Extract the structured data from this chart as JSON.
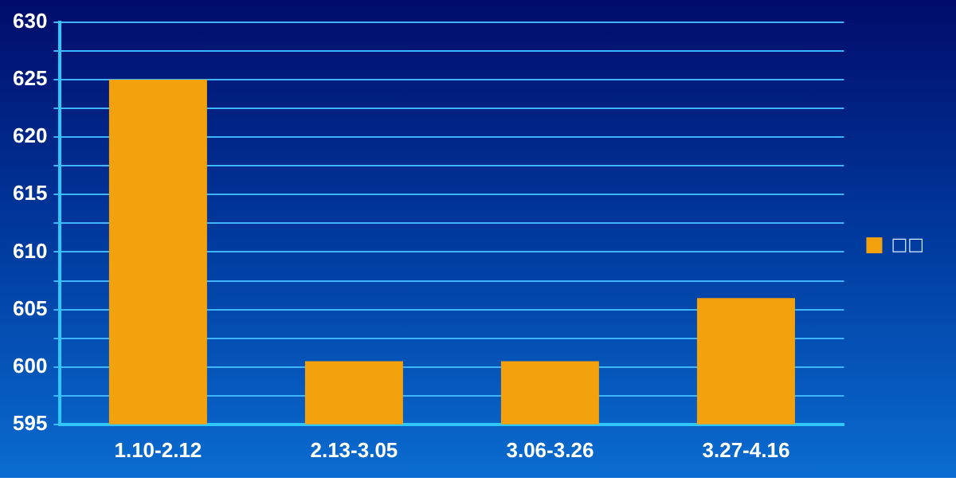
{
  "chart_data": {
    "type": "bar",
    "categories": [
      "1.10-2.12",
      "2.13-3.05",
      "3.06-3.26",
      "3.27-4.16"
    ],
    "series": [
      {
        "name": "□□",
        "color": "#f3a10c",
        "values": [
          625,
          600.5,
          600.5,
          606
        ]
      }
    ],
    "ylim": [
      595,
      630
    ],
    "yticks": [
      595,
      {
        "value": 597.5,
        "label": null
      },
      600,
      {
        "value": 602.5,
        "label": null
      },
      605,
      {
        "value": 607.5,
        "label": null
      },
      610,
      {
        "value": 612.5,
        "label": null
      },
      615,
      {
        "value": 617.5,
        "label": null
      },
      620,
      {
        "value": 622.5,
        "label": null
      },
      625,
      {
        "value": 627.5,
        "label": null
      },
      630
    ],
    "grid": "y",
    "legend": "right"
  }
}
